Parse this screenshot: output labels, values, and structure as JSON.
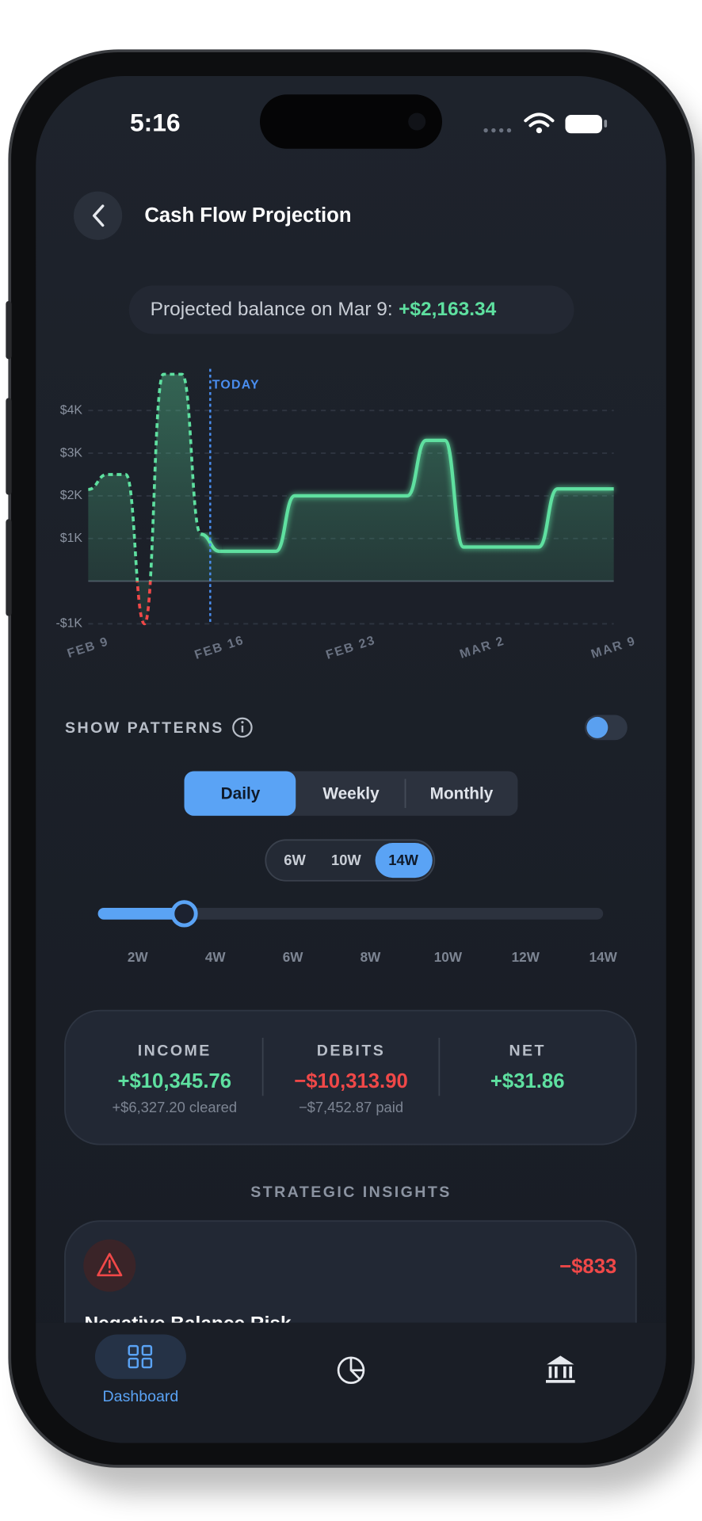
{
  "status_bar": {
    "time": "5:16"
  },
  "header": {
    "title": "Cash Flow Projection"
  },
  "projection": {
    "label": "Projected balance on Mar 9:",
    "value": "+$2,163.34"
  },
  "chart_data": {
    "type": "line",
    "categories": [
      "FEB 9",
      null,
      null,
      null,
      null,
      null,
      null,
      "FEB 16",
      null,
      null,
      null,
      null,
      null,
      null,
      "FEB 23",
      null,
      null,
      null,
      null,
      null,
      null,
      "MAR 2",
      null,
      null,
      null,
      null,
      null,
      null,
      "MAR 9"
    ],
    "values": [
      2150,
      2500,
      2500,
      -1000,
      4850,
      4850,
      1100,
      700,
      700,
      700,
      700,
      2000,
      2000,
      2000,
      2000,
      2000,
      2000,
      2000,
      3300,
      3300,
      800,
      800,
      800,
      800,
      800,
      2163.34,
      2163.34,
      2163.34,
      2163.34
    ],
    "color": "#5ee0a0",
    "negative_color": "#f04848",
    "ylim": [
      -1000,
      4900
    ],
    "yticks": [
      {
        "value": -1000,
        "label": "-$1K"
      },
      {
        "value": 0,
        "label": ""
      },
      {
        "value": 1000,
        "label": "$1K"
      },
      {
        "value": 2000,
        "label": "$2K"
      },
      {
        "value": 3000,
        "label": "$3K"
      },
      {
        "value": 4000,
        "label": "$4K"
      }
    ],
    "grid": true,
    "annotation": {
      "text": "TODAY",
      "at": 6.5
    }
  },
  "patterns": {
    "label": "SHOW PATTERNS"
  },
  "granularity": {
    "options": [
      "Daily",
      "Weekly",
      "Monthly"
    ]
  },
  "ranges": {
    "options": [
      "6W",
      "10W",
      "14W"
    ]
  },
  "slider": {
    "labels": [
      "2W",
      "4W",
      "6W",
      "8W",
      "10W",
      "12W",
      "14W"
    ]
  },
  "summary": [
    {
      "label": "INCOME",
      "value": "+$10,345.76",
      "detail": "+$6,327.20 cleared"
    },
    {
      "label": "DEBITS",
      "value": "−$10,313.90",
      "detail": "−$7,452.87 paid"
    },
    {
      "label": "NET",
      "value": "+$31.86"
    }
  ],
  "insights": {
    "title": "STRATEGIC INSIGHTS",
    "items": [
      {
        "amount": "−$833",
        "title": "Negative Balance Risk"
      }
    ]
  },
  "nav": {
    "items": [
      "Dashboard"
    ]
  }
}
